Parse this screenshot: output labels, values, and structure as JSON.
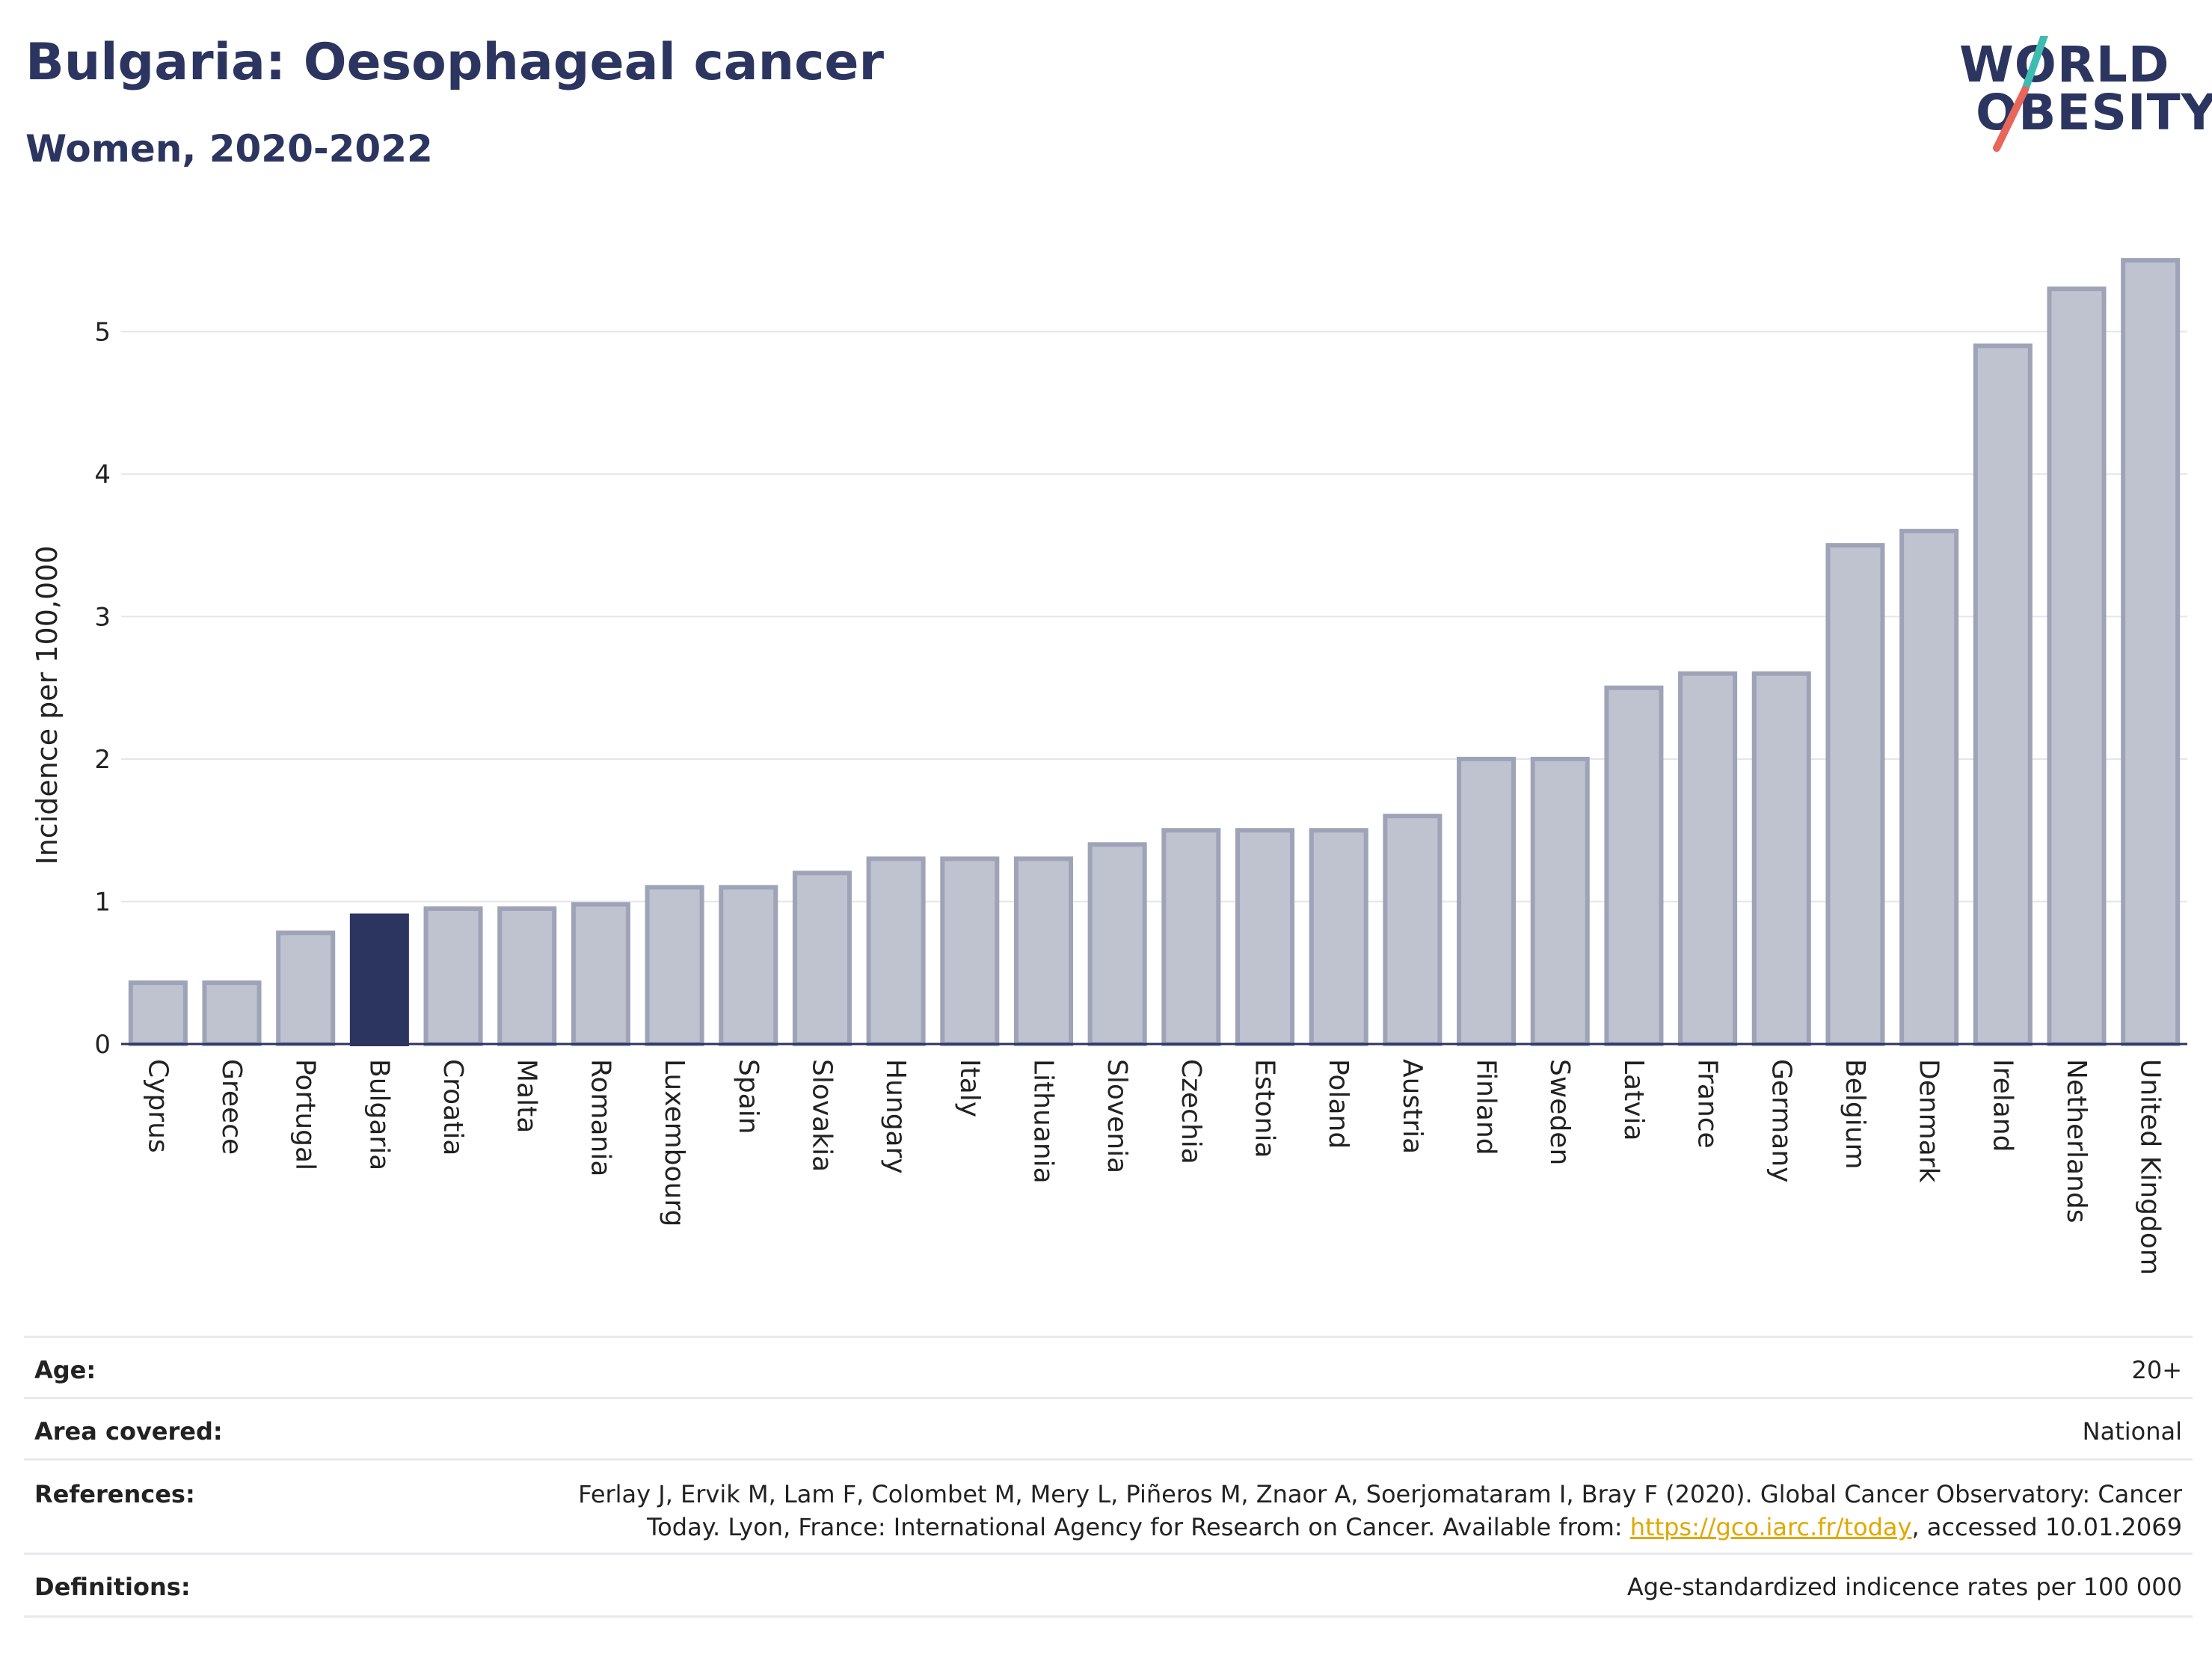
{
  "header": {
    "title": "Bulgaria: Oesophageal cancer",
    "subtitle": "Women, 2020-2022"
  },
  "logo": {
    "line1": "WORLD",
    "line2": "OBESITY",
    "colors": {
      "text": "#2b3560",
      "slash_top": "#3dbdb0",
      "slash_bottom": "#e8675a"
    }
  },
  "colors": {
    "highlight": "#2b3560",
    "bar_fill": "#bfc2cf",
    "bar_stroke": "#9ea3b8",
    "grid": "#e4e6ec",
    "axis": "#2b3560"
  },
  "chart_data": {
    "type": "bar",
    "title": "Bulgaria: Oesophageal cancer",
    "subtitle": "Women, 2020-2022",
    "xlabel": "",
    "ylabel": "Incidence per 100,000",
    "ylim": [
      0,
      5.7
    ],
    "yticks": [
      0,
      1,
      2,
      3,
      4,
      5
    ],
    "grid": true,
    "highlight_category": "Bulgaria",
    "categories": [
      "Cyprus",
      "Greece",
      "Portugal",
      "Bulgaria",
      "Croatia",
      "Malta",
      "Romania",
      "Luxembourg",
      "Spain",
      "Slovakia",
      "Hungary",
      "Italy",
      "Lithuania",
      "Slovenia",
      "Czechia",
      "Estonia",
      "Poland",
      "Austria",
      "Finland",
      "Sweden",
      "Latvia",
      "France",
      "Germany",
      "Belgium",
      "Denmark",
      "Ireland",
      "Netherlands",
      "United Kingdom"
    ],
    "values": [
      0.43,
      0.43,
      0.78,
      0.9,
      0.95,
      0.95,
      0.98,
      1.1,
      1.1,
      1.2,
      1.3,
      1.3,
      1.3,
      1.4,
      1.5,
      1.5,
      1.5,
      1.6,
      2.0,
      2.0,
      2.5,
      2.6,
      2.6,
      3.5,
      3.6,
      4.9,
      5.3,
      5.5
    ]
  },
  "meta": {
    "age": {
      "label": "Age:",
      "value": "20+"
    },
    "area": {
      "label": "Area covered:",
      "value": "National"
    },
    "references": {
      "label": "References:",
      "line1": "Ferlay J, Ervik M, Lam F, Colombet M, Mery L, Piñeros M, Znaor A, Soerjomataram I, Bray F (2020). Global Cancer Observatory: Cancer",
      "line2_pre": "Today. Lyon, France: International Agency for Research on Cancer. Available from: ",
      "link": "https://gco.iarc.fr/today",
      "line2_post": ", accessed 10.01.2069"
    },
    "definitions": {
      "label": "Definitions:",
      "value": "Age-standardized indicence rates per 100 000"
    }
  }
}
